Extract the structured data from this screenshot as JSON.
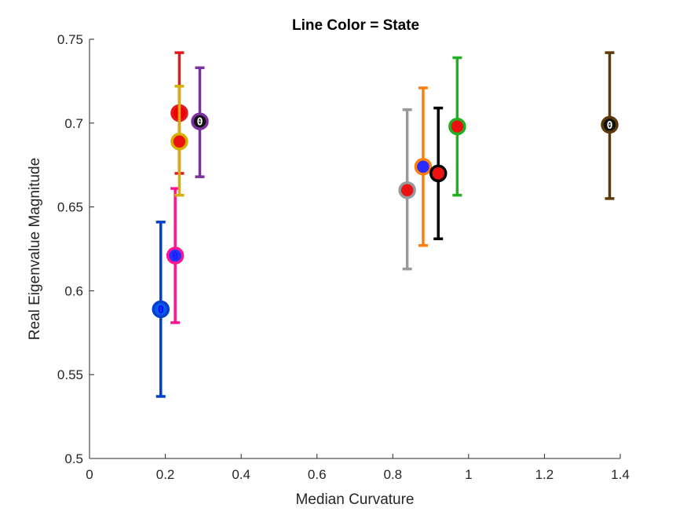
{
  "chart_data": {
    "type": "scatter",
    "title": "Line Color = State",
    "xlabel": "Median Curvature",
    "ylabel": "Real Eigenvalue Magnitude",
    "xlim": [
      0,
      1.4
    ],
    "ylim": [
      0.5,
      0.75
    ],
    "xticks": [
      "0",
      "0.2",
      "0.4",
      "0.6",
      "0.8",
      "1",
      "1.2",
      "1.4"
    ],
    "yticks": [
      "0.5",
      "0.55",
      "0.6",
      "0.65",
      "0.7",
      "0.75"
    ],
    "grid": false,
    "points": [
      {
        "x": 0.188,
        "y": 0.589,
        "lo": 0.537,
        "hi": 0.641,
        "line_color": "#0040d0",
        "fill_color": "#0a5ae6",
        "marker_label": "0",
        "marker_label_color": "#0000ff"
      },
      {
        "x": 0.226,
        "y": 0.621,
        "lo": 0.581,
        "hi": 0.661,
        "line_color": "#ff1493",
        "fill_color": "#2233ff",
        "marker_label": "0",
        "marker_label_color": "#1a1aff"
      },
      {
        "x": 0.237,
        "y": 0.706,
        "lo": 0.67,
        "hi": 0.742,
        "line_color": "#e31a1c",
        "fill_color": "#ee0000",
        "marker_label": "0",
        "marker_label_color": "#ee0000"
      },
      {
        "x": 0.237,
        "y": 0.689,
        "lo": 0.657,
        "hi": 0.722,
        "line_color": "#d4b000",
        "fill_color": "#ee1111",
        "marker_label": "0",
        "marker_label_color": "#ee1111"
      },
      {
        "x": 0.291,
        "y": 0.701,
        "lo": 0.668,
        "hi": 0.733,
        "line_color": "#7b2fa0",
        "fill_color": "#111111",
        "marker_label": "0",
        "marker_label_color": "#ffffff"
      },
      {
        "x": 0.838,
        "y": 0.66,
        "lo": 0.613,
        "hi": 0.708,
        "line_color": "#999999",
        "fill_color": "#ee1111",
        "marker_label": "0",
        "marker_label_color": "#ee1111"
      },
      {
        "x": 0.88,
        "y": 0.674,
        "lo": 0.627,
        "hi": 0.721,
        "line_color": "#ff7f0e",
        "fill_color": "#2b2bff",
        "marker_label": "0",
        "marker_label_color": "#2b2bff"
      },
      {
        "x": 0.92,
        "y": 0.67,
        "lo": 0.631,
        "hi": 0.709,
        "line_color": "#000000",
        "fill_color": "#ee1111",
        "marker_label": "0",
        "marker_label_color": "#ee1111"
      },
      {
        "x": 0.97,
        "y": 0.698,
        "lo": 0.657,
        "hi": 0.739,
        "line_color": "#22b022",
        "fill_color": "#ee1111",
        "marker_label": "0",
        "marker_label_color": "#ee1111"
      },
      {
        "x": 1.372,
        "y": 0.699,
        "lo": 0.655,
        "hi": 0.742,
        "line_color": "#5c3a0a",
        "fill_color": "#111111",
        "marker_label": "0",
        "marker_label_color": "#ffffff"
      }
    ]
  }
}
